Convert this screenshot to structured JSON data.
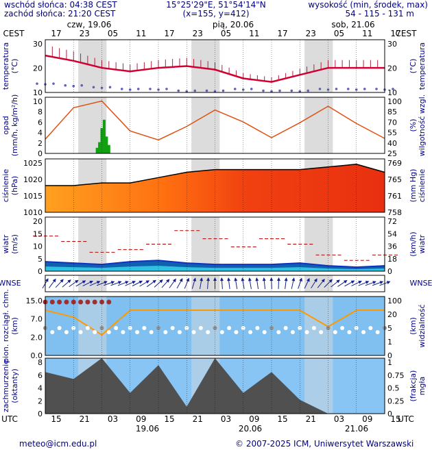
{
  "header": {
    "sunrise": "wschód słońca: 04:38 CEST",
    "sunset": "zachód słońca: 21:20 CEST",
    "coords": "15°25'29\"E, 51°54'14\"N",
    "grid": "(x=155,  y=412)",
    "elev_label": "wysokość (min, środek, max)",
    "elev_values": "54 - 115 - 131 m"
  },
  "top_axis": {
    "tz": "CEST",
    "hours": [
      "17",
      "23",
      "05",
      "11",
      "17",
      "23",
      "05",
      "11",
      "17",
      "23",
      "05",
      "11",
      "17"
    ],
    "days": [
      "czw, 19.06",
      "pią, 20.06",
      "sob, 21.06"
    ]
  },
  "bottom_axis": {
    "tz": "UTC",
    "hours": [
      "15",
      "21",
      "03",
      "09",
      "15",
      "21",
      "03",
      "09",
      "15",
      "21",
      "03",
      "09",
      "15"
    ],
    "days": [
      "19.06",
      "20.06",
      "21.06"
    ]
  },
  "panels": {
    "temp": {
      "left": "temperatura",
      "left_unit": "(°C)",
      "right": "temperatura",
      "right_unit": "(°C)",
      "yl_ticks": [
        "30",
        "20",
        "10"
      ],
      "yr_ticks": [
        "30",
        "20",
        "10"
      ]
    },
    "precip": {
      "left": "opad",
      "left_unit": "(mm/h, kg/m²/h)",
      "right": "wilgotność wzgl.",
      "right_unit": "(%)",
      "yl_ticks": [
        "10",
        "8",
        "6",
        "4",
        "2",
        "0"
      ],
      "yr_ticks": [
        "100",
        "85",
        "70",
        "55",
        "40",
        "25"
      ]
    },
    "press": {
      "left": "ciśnienie",
      "left_unit": "(hPa)",
      "right": "ciśnienie",
      "right_unit": "(mm Hg)",
      "yl_ticks": [
        "1025",
        "1020",
        "1015",
        "1010"
      ],
      "yr_ticks": [
        "769",
        "765",
        "761",
        "758"
      ]
    },
    "wind": {
      "left": "wiatr",
      "left_unit": "(m/s)",
      "right": "wiatr",
      "right_unit": "(km/h)",
      "yl_ticks": [
        "20",
        "15",
        "10",
        "5",
        "0"
      ],
      "yr_ticks": [
        "72",
        "54",
        "36",
        "18",
        "0"
      ]
    },
    "dir": {
      "left": "WNSE",
      "right": "WNSE"
    },
    "vis": {
      "left": "pion. rozciągł. chm.",
      "left_unit": "(km)",
      "right": "widzialność",
      "right_unit": "(km)",
      "yl_ticks": [
        "15.0",
        "7.0",
        "2.0",
        "0.0"
      ],
      "yr_ticks": [
        "100",
        "20",
        "5",
        "1",
        "0"
      ]
    },
    "cloud": {
      "left": "zachmurzenie",
      "left_unit": "(oktanty)",
      "right": "mgła",
      "right_unit": "(frakcja)",
      "yl_ticks": [
        "8",
        "6",
        "4",
        "2",
        "0"
      ],
      "yr_ticks": [
        "1",
        "0.75",
        "0.5",
        "0.25",
        "0"
      ]
    }
  },
  "footer": {
    "email": "meteo@icm.edu.pl",
    "copyright": "© 2007-2025 ICM, Uniwersytet Warszawski"
  },
  "colors": {
    "night_band": "#dcdcdc",
    "temp_line": "#d00030",
    "precip_bars": "#10a010",
    "humidity_line": "#e05010",
    "pressure_line": "#000000",
    "wind_line": "#1030c0",
    "gust_marks": "#b00000",
    "visibility_line": "#ff9900",
    "vis_background": "#80c0f0"
  },
  "chart_data": [
    {
      "type": "line",
      "title": "temperatura",
      "x_hours_utc_from_start": [
        0,
        6,
        12,
        18,
        24,
        30,
        36,
        42,
        48,
        54,
        60,
        66,
        72
      ],
      "series": [
        {
          "values": [
            26,
            23,
            19,
            17,
            19,
            20,
            18,
            13,
            11,
            15,
            19,
            19,
            19
          ]
        },
        {
          "values": [
            10,
            9,
            8,
            7,
            7,
            6,
            6,
            7,
            6,
            6,
            7,
            7,
            7
          ]
        }
      ],
      "ylim": [
        5,
        35
      ]
    },
    {
      "type": "line",
      "title": "opad / wilgotność",
      "series": [
        {
          "values": [
            44,
            86,
            95,
            55,
            43,
            61,
            83,
            67,
            46,
            66,
            88,
            65,
            45
          ]
        },
        {
          "values": [
            0,
            0,
            4.5,
            0,
            0,
            0,
            0,
            0,
            0,
            0,
            0,
            0,
            0
          ]
        }
      ],
      "ylim": [
        0,
        10
      ]
    },
    {
      "type": "area",
      "title": "ciśnienie",
      "series": [
        {
          "values": [
            1020,
            1020,
            1021,
            1021,
            1023,
            1025,
            1026,
            1026,
            1026,
            1026,
            1027,
            1028,
            1025
          ]
        }
      ],
      "ylim": [
        1010,
        1030
      ]
    },
    {
      "type": "line",
      "title": "wiatr",
      "series": [
        {
          "values": [
            3.5,
            3,
            2.5,
            3.5,
            4,
            3,
            2.5,
            2.5,
            2.5,
            3,
            2,
            1.5,
            2
          ]
        },
        {
          "values": [
            13,
            11,
            7,
            8,
            10,
            15,
            12,
            9,
            12,
            10,
            6,
            4,
            6
          ]
        }
      ],
      "ylim": [
        0,
        20
      ]
    },
    {
      "type": "area",
      "title": "zachmurzenie",
      "series": [
        {
          "values": [
            6,
            5,
            8,
            3,
            7,
            1,
            8,
            3,
            6,
            2,
            0,
            0,
            0
          ]
        }
      ],
      "ylim": [
        0,
        8
      ]
    }
  ]
}
